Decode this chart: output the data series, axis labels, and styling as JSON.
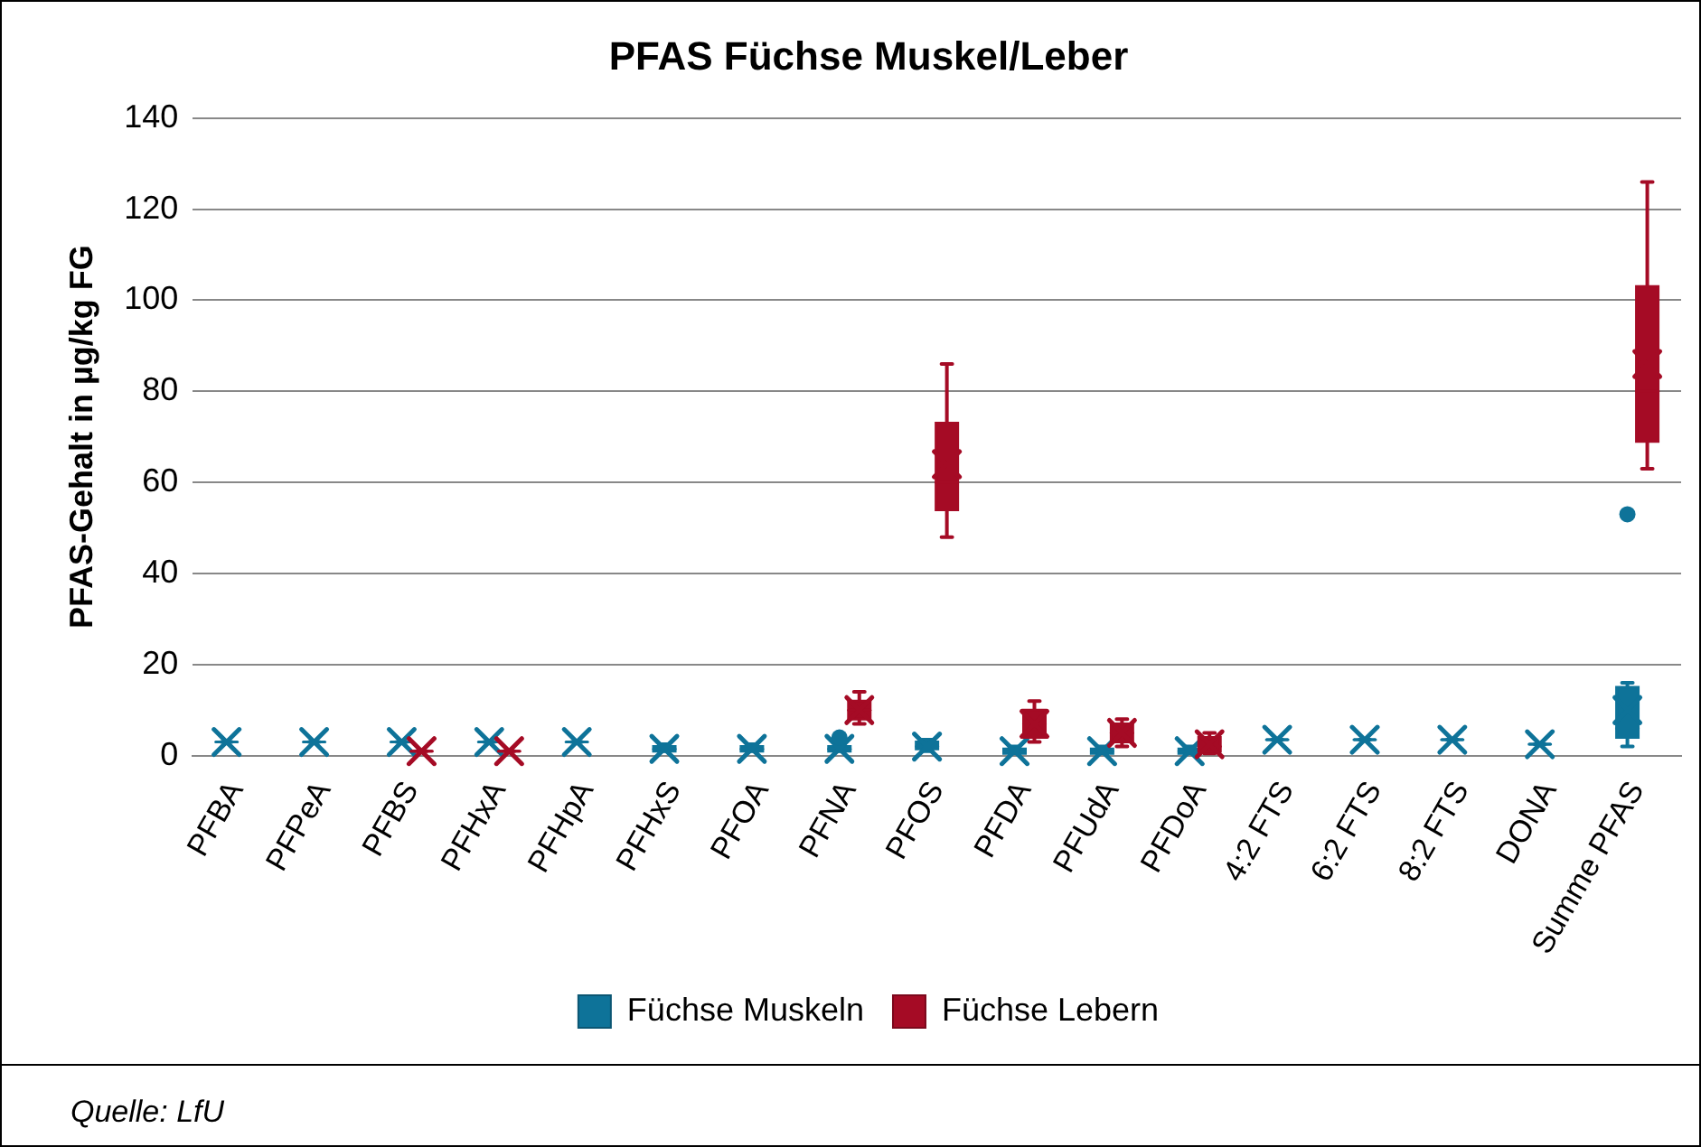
{
  "chart_data": {
    "type": "box",
    "title": "PFAS Füchse Muskel/Leber",
    "ylabel": "PFAS-Gehalt in µg/kg FG",
    "categories": [
      "PFBA",
      "PFPeA",
      "PFBS",
      "PFHxA",
      "PFHpA",
      "PFHxS",
      "PFOA",
      "PFNA",
      "PFOS",
      "PFDA",
      "PFUdA",
      "PFDoA",
      "4:2 FTS",
      "6:2 FTS",
      "8:2 FTS",
      "DONA",
      "Summe PFAS"
    ],
    "series": [
      {
        "name": "Füchse Muskeln",
        "color": "#0e7399",
        "boxes": [
          {
            "low": 3,
            "q1": 3,
            "median": 3,
            "q3": 3,
            "high": 3,
            "mean": 3
          },
          {
            "low": 3,
            "q1": 3,
            "median": 3,
            "q3": 3,
            "high": 3,
            "mean": 3
          },
          {
            "low": 3,
            "q1": 3,
            "median": 3,
            "q3": 3,
            "high": 3,
            "mean": 3
          },
          {
            "low": 3,
            "q1": 3,
            "median": 3,
            "q3": 3,
            "high": 3,
            "mean": 3
          },
          {
            "low": 3,
            "q1": 3,
            "median": 3,
            "q3": 3,
            "high": 3,
            "mean": 3
          },
          {
            "low": 1,
            "q1": 1,
            "median": 1.5,
            "q3": 2,
            "high": 2.5,
            "mean": 1.5
          },
          {
            "low": 1,
            "q1": 1,
            "median": 1.5,
            "q3": 2,
            "high": 2.5,
            "mean": 1.5
          },
          {
            "low": 1,
            "q1": 1,
            "median": 1.5,
            "q3": 2,
            "high": 2.5,
            "mean": 1.5,
            "outliers": [
              4
            ]
          },
          {
            "low": 1,
            "q1": 1.5,
            "median": 2,
            "q3": 3,
            "high": 3.5,
            "mean": 2
          },
          {
            "low": 0.5,
            "q1": 0.5,
            "median": 1,
            "q3": 1.5,
            "high": 2,
            "mean": 1
          },
          {
            "low": 0.5,
            "q1": 0.5,
            "median": 1,
            "q3": 1.5,
            "high": 2,
            "mean": 1
          },
          {
            "low": 0.5,
            "q1": 0.5,
            "median": 1,
            "q3": 1.5,
            "high": 2,
            "mean": 1
          },
          {
            "low": 3.5,
            "q1": 3.5,
            "median": 3.5,
            "q3": 3.5,
            "high": 3.5,
            "mean": 3.5
          },
          {
            "low": 3.5,
            "q1": 3.5,
            "median": 3.5,
            "q3": 3.5,
            "high": 3.5,
            "mean": 3.5
          },
          {
            "low": 3.5,
            "q1": 3.5,
            "median": 3.5,
            "q3": 3.5,
            "high": 3.5,
            "mean": 3.5
          },
          {
            "low": 2.5,
            "q1": 2.5,
            "median": 2.5,
            "q3": 2.5,
            "high": 2.5,
            "mean": 2.5
          },
          {
            "low": 2,
            "q1": 4,
            "median": 6,
            "q3": 15,
            "high": 16,
            "mean": 10,
            "outliers": [
              53
            ]
          }
        ]
      },
      {
        "name": "Füchse Lebern",
        "color": "#a50b25",
        "boxes": [
          null,
          null,
          {
            "low": 1,
            "q1": 1,
            "median": 1,
            "q3": 1,
            "high": 1,
            "mean": 1
          },
          {
            "low": 1,
            "q1": 1,
            "median": 1,
            "q3": 1,
            "high": 1,
            "mean": 1
          },
          null,
          null,
          null,
          {
            "low": 7,
            "q1": 8,
            "median": 10,
            "q3": 12,
            "high": 14,
            "mean": 10
          },
          {
            "low": 48,
            "q1": 54,
            "median": 60,
            "q3": 73,
            "high": 86,
            "mean": 64
          },
          {
            "low": 3,
            "q1": 4,
            "median": 7,
            "q3": 10,
            "high": 12,
            "mean": 7
          },
          {
            "low": 2,
            "q1": 3,
            "median": 5,
            "q3": 7,
            "high": 8,
            "mean": 5
          },
          {
            "low": 0.5,
            "q1": 1,
            "median": 2,
            "q3": 4,
            "high": 5,
            "mean": 2.5
          },
          null,
          null,
          null,
          null,
          {
            "low": 63,
            "q1": 69,
            "median": 80,
            "q3": 103,
            "high": 126,
            "mean": 86
          }
        ]
      }
    ],
    "ylim": [
      0,
      140
    ],
    "yticks": [
      0,
      20,
      40,
      60,
      80,
      100,
      120,
      140
    ],
    "grid": "y",
    "legend": "bottom",
    "marker": "cross",
    "annotations": [
      "Quelle: LfU"
    ]
  }
}
